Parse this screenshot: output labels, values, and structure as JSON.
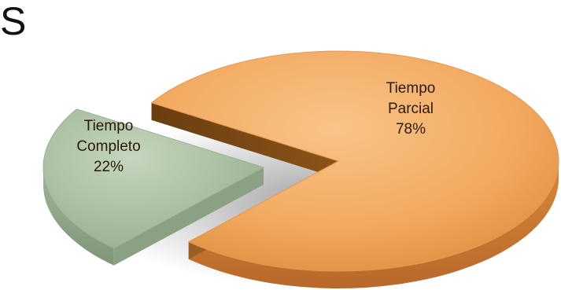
{
  "header": {
    "title": "S"
  },
  "colors": {
    "part_time": "#f2a95f",
    "full_time": "#a8bda1"
  },
  "chart_data": {
    "type": "pie",
    "title": "",
    "style": "3d-exploded",
    "slices": [
      {
        "label_lines": [
          "Tiempo",
          "Parcial",
          "78%"
        ],
        "value": 78,
        "color": "#f2a95f"
      },
      {
        "label_lines": [
          "Tiempo",
          "Completo",
          "22%"
        ],
        "value": 22,
        "color": "#a8bda1",
        "exploded": true
      }
    ]
  }
}
